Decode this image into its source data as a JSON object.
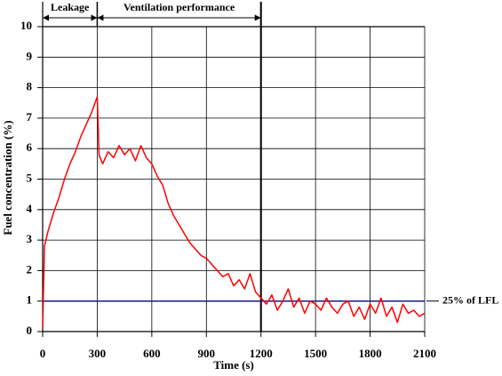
{
  "chart_data": {
    "type": "line",
    "x_label": "Time (s)",
    "y_label": "Fuel concentration (%)",
    "x": [
      0,
      10,
      30,
      60,
      90,
      120,
      150,
      180,
      210,
      240,
      270,
      300,
      310,
      330,
      360,
      390,
      420,
      450,
      480,
      510,
      540,
      570,
      600,
      630,
      660,
      690,
      720,
      750,
      780,
      810,
      840,
      870,
      900,
      930,
      960,
      990,
      1020,
      1050,
      1080,
      1110,
      1140,
      1170,
      1200,
      1230,
      1260,
      1290,
      1320,
      1350,
      1380,
      1410,
      1440,
      1470,
      1500,
      1530,
      1560,
      1590,
      1620,
      1650,
      1680,
      1710,
      1740,
      1770,
      1800,
      1830,
      1860,
      1890,
      1920,
      1950,
      1980,
      2010,
      2040,
      2070,
      2100
    ],
    "series": [
      {
        "color": "#ff0000",
        "values": [
          0.1,
          2.8,
          3.3,
          3.9,
          4.4,
          5.0,
          5.5,
          5.9,
          6.4,
          6.8,
          7.2,
          7.7,
          5.8,
          5.5,
          5.9,
          5.7,
          6.1,
          5.8,
          6.0,
          5.6,
          6.1,
          5.7,
          5.5,
          5.1,
          4.8,
          4.2,
          3.8,
          3.5,
          3.2,
          2.9,
          2.7,
          2.5,
          2.4,
          2.2,
          2.0,
          1.8,
          1.9,
          1.5,
          1.7,
          1.4,
          1.9,
          1.3,
          1.1,
          0.9,
          1.2,
          0.7,
          1.0,
          1.4,
          0.8,
          1.1,
          0.6,
          1.0,
          0.9,
          0.7,
          1.1,
          0.8,
          0.6,
          0.9,
          1.0,
          0.5,
          0.8,
          0.4,
          0.9,
          0.6,
          1.1,
          0.5,
          0.8,
          0.3,
          0.9,
          0.6,
          0.7,
          0.5,
          0.6
        ]
      }
    ],
    "xlim": [
      0,
      2100
    ],
    "xticks": [
      0,
      300,
      600,
      900,
      1200,
      1500,
      1800,
      2100
    ],
    "ylim": [
      0,
      10
    ],
    "yticks": [
      0,
      1,
      2,
      3,
      4,
      5,
      6,
      7,
      8,
      9,
      10
    ],
    "grid": true,
    "reference_line": {
      "value": 1,
      "label": "25% of LFL",
      "color": "#1a1a80"
    },
    "vline": 1200,
    "phases": [
      {
        "label": "Leakage",
        "x": [
          0,
          300
        ]
      },
      {
        "label": "Ventilation performance",
        "x": [
          300,
          1200
        ]
      }
    ]
  }
}
